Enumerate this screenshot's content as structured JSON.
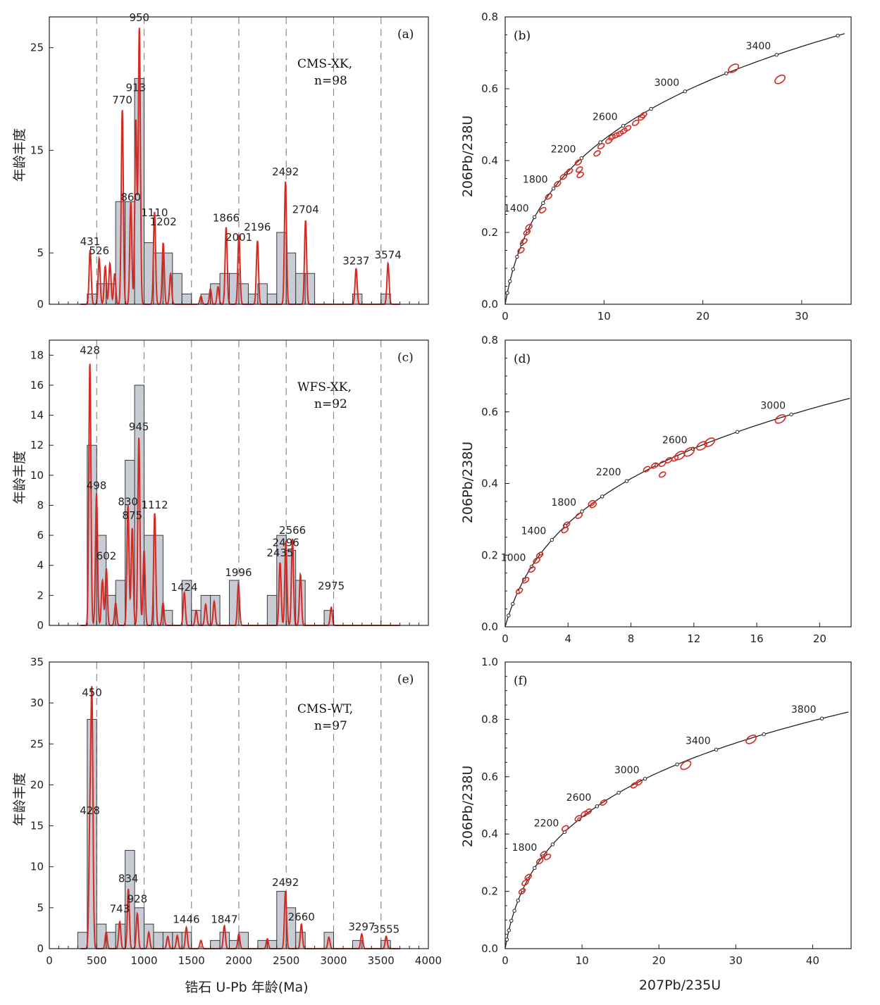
{
  "figure_text": {
    "histogram_x_label": "锆石 U-Pb 年龄(Ma)",
    "histogram_y_label": "年龄丰度",
    "concordia_x_label": "207Pb/235U",
    "concordia_y_label": "206Pb/238U"
  },
  "chart_data": [
    {
      "id": "a",
      "type": "bar",
      "panel_label": "(a)",
      "sample": "CMS-XK,",
      "n_label": "n=98",
      "xlim": [
        0,
        4000
      ],
      "ylim": [
        0,
        28
      ],
      "yticks": [
        0,
        5,
        15,
        25
      ],
      "xticks": [
        500,
        1000,
        1500,
        2000,
        2500,
        3000,
        3500
      ],
      "bin_width": 100,
      "bars": [
        [
          400,
          1
        ],
        [
          500,
          2
        ],
        [
          600,
          2
        ],
        [
          700,
          10
        ],
        [
          800,
          10
        ],
        [
          900,
          22
        ],
        [
          1000,
          6
        ],
        [
          1100,
          5
        ],
        [
          1200,
          5
        ],
        [
          1300,
          3
        ],
        [
          1400,
          1
        ],
        [
          1600,
          1
        ],
        [
          1700,
          2
        ],
        [
          1800,
          3
        ],
        [
          1900,
          3
        ],
        [
          2000,
          2
        ],
        [
          2100,
          1
        ],
        [
          2200,
          2
        ],
        [
          2300,
          1
        ],
        [
          2400,
          7
        ],
        [
          2500,
          5
        ],
        [
          2600,
          3
        ],
        [
          2700,
          3
        ],
        [
          3200,
          1
        ],
        [
          3500,
          1
        ]
      ],
      "curve_peaks": [
        [
          431,
          5.3
        ],
        [
          526,
          4.5
        ],
        [
          590,
          3.7
        ],
        [
          640,
          4
        ],
        [
          690,
          3
        ],
        [
          770,
          19
        ],
        [
          860,
          10
        ],
        [
          913,
          18
        ],
        [
          950,
          27
        ],
        [
          1110,
          9
        ],
        [
          1202,
          6
        ],
        [
          1280,
          3
        ],
        [
          1600,
          0.8
        ],
        [
          1700,
          1.5
        ],
        [
          1780,
          1.7
        ],
        [
          1866,
          7.5
        ],
        [
          2001,
          6.8
        ],
        [
          2196,
          6.2
        ],
        [
          2492,
          12
        ],
        [
          2704,
          8.2
        ],
        [
          3237,
          3.5
        ],
        [
          3574,
          4
        ]
      ],
      "peak_labels": [
        {
          "t": "431",
          "x": 431,
          "y": 5.5
        },
        {
          "t": "526",
          "x": 526,
          "y": 4.6
        },
        {
          "t": "770",
          "x": 770,
          "y": 19.3
        },
        {
          "t": "860",
          "x": 860,
          "y": 9.8
        },
        {
          "t": "913",
          "x": 913,
          "y": 20.5
        },
        {
          "t": "950",
          "x": 950,
          "y": 27.3
        },
        {
          "t": "1110",
          "x": 1110,
          "y": 8.3
        },
        {
          "t": "1202",
          "x": 1202,
          "y": 7.4
        },
        {
          "t": "1866",
          "x": 1866,
          "y": 7.8
        },
        {
          "t": "2001",
          "x": 2001,
          "y": 5.9
        },
        {
          "t": "2196",
          "x": 2196,
          "y": 6.9
        },
        {
          "t": "2492",
          "x": 2492,
          "y": 12.3
        },
        {
          "t": "2704",
          "x": 2704,
          "y": 8.6
        },
        {
          "t": "3237",
          "x": 3237,
          "y": 3.6
        },
        {
          "t": "3574",
          "x": 3574,
          "y": 4.2
        }
      ]
    },
    {
      "id": "b",
      "type": "scatter",
      "panel_label": "(b)",
      "xlim": [
        0,
        35
      ],
      "ylim": [
        0,
        0.8
      ],
      "xticks": [
        0,
        10,
        20,
        30
      ],
      "yticks": [
        0.0,
        0.2,
        0.4,
        0.6,
        0.8
      ],
      "concordia_labels": [
        1400,
        1800,
        2200,
        2600,
        3000,
        3400
      ],
      "concordia_max_age": 3950,
      "concordia_marker_step": 200,
      "ellipses": [
        [
          1.6,
          0.15
        ],
        [
          1.9,
          0.175
        ],
        [
          2.2,
          0.2
        ],
        [
          2.4,
          0.215
        ],
        [
          3.8,
          0.262
        ],
        [
          4.4,
          0.3
        ],
        [
          5.3,
          0.335
        ],
        [
          5.9,
          0.355
        ],
        [
          6.5,
          0.37
        ],
        [
          7.4,
          0.395
        ],
        [
          7.6,
          0.36
        ],
        [
          7.5,
          0.375
        ],
        [
          9.3,
          0.42
        ],
        [
          9.7,
          0.44
        ],
        [
          10.5,
          0.455
        ],
        [
          10.8,
          0.465
        ],
        [
          11.2,
          0.47
        ],
        [
          11.6,
          0.475
        ],
        [
          12.0,
          0.482
        ],
        [
          12.4,
          0.49
        ],
        [
          13.2,
          0.505
        ],
        [
          13.8,
          0.52
        ],
        [
          14.0,
          0.527
        ],
        [
          23.1,
          0.657
        ],
        [
          27.8,
          0.626
        ]
      ]
    },
    {
      "id": "c",
      "type": "bar",
      "panel_label": "(c)",
      "sample": "WFS-XK,",
      "n_label": "n=92",
      "xlim": [
        0,
        4000
      ],
      "ylim": [
        0,
        19
      ],
      "yticks": [
        0,
        2,
        4,
        6,
        8,
        10,
        12,
        14,
        16,
        18
      ],
      "xticks": [
        500,
        1000,
        1500,
        2000,
        2500,
        3000,
        3500
      ],
      "bin_width": 100,
      "bars": [
        [
          400,
          12
        ],
        [
          500,
          6
        ],
        [
          600,
          2
        ],
        [
          700,
          3
        ],
        [
          800,
          11
        ],
        [
          900,
          16
        ],
        [
          1000,
          6
        ],
        [
          1100,
          6
        ],
        [
          1200,
          1
        ],
        [
          1400,
          3
        ],
        [
          1500,
          1
        ],
        [
          1600,
          2
        ],
        [
          1700,
          2
        ],
        [
          1900,
          3
        ],
        [
          2300,
          2
        ],
        [
          2400,
          6
        ],
        [
          2500,
          5
        ],
        [
          2600,
          3
        ],
        [
          2900,
          1
        ]
      ],
      "curve_peaks": [
        [
          428,
          17.5
        ],
        [
          498,
          8.8
        ],
        [
          560,
          3
        ],
        [
          602,
          3.8
        ],
        [
          700,
          1.5
        ],
        [
          830,
          8
        ],
        [
          875,
          6.5
        ],
        [
          945,
          12.5
        ],
        [
          1000,
          5
        ],
        [
          1112,
          7.5
        ],
        [
          1200,
          1.5
        ],
        [
          1424,
          2.2
        ],
        [
          1550,
          1
        ],
        [
          1650,
          1.4
        ],
        [
          1740,
          1.6
        ],
        [
          1996,
          2.8
        ],
        [
          2435,
          4.2
        ],
        [
          2496,
          5.6
        ],
        [
          2566,
          5.8
        ],
        [
          2650,
          3.4
        ],
        [
          2975,
          1.2
        ]
      ],
      "peak_labels": [
        {
          "t": "428",
          "x": 428,
          "y": 17.9
        },
        {
          "t": "498",
          "x": 498,
          "y": 8.9
        },
        {
          "t": "602",
          "x": 602,
          "y": 4.2
        },
        {
          "t": "830",
          "x": 830,
          "y": 7.8
        },
        {
          "t": "875",
          "x": 875,
          "y": 6.9
        },
        {
          "t": "945",
          "x": 945,
          "y": 12.8
        },
        {
          "t": "1112",
          "x": 1112,
          "y": 7.6
        },
        {
          "t": "1424",
          "x": 1424,
          "y": 2.1
        },
        {
          "t": "1996",
          "x": 1996,
          "y": 3.1
        },
        {
          "t": "2435",
          "x": 2435,
          "y": 4.4
        },
        {
          "t": "2496",
          "x": 2496,
          "y": 5.1
        },
        {
          "t": "2566",
          "x": 2566,
          "y": 5.9
        },
        {
          "t": "2975",
          "x": 2975,
          "y": 2.2
        }
      ]
    },
    {
      "id": "d",
      "type": "scatter",
      "panel_label": "(d)",
      "xlim": [
        0,
        22
      ],
      "ylim": [
        0,
        0.8
      ],
      "xticks": [
        0,
        4,
        8,
        12,
        16,
        20
      ],
      "yticks": [
        0.0,
        0.2,
        0.4,
        0.6,
        0.8
      ],
      "concordia_labels": [
        1000,
        1400,
        1800,
        2200,
        2600,
        3000
      ],
      "concordia_max_age": 3400,
      "concordia_marker_step": 200,
      "ellipses": [
        [
          0.9,
          0.1
        ],
        [
          1.3,
          0.13
        ],
        [
          1.7,
          0.16
        ],
        [
          2.0,
          0.185
        ],
        [
          2.2,
          0.2
        ],
        [
          3.8,
          0.27
        ],
        [
          3.9,
          0.285
        ],
        [
          4.7,
          0.31
        ],
        [
          5.5,
          0.345
        ],
        [
          5.6,
          0.34
        ],
        [
          9.0,
          0.44
        ],
        [
          9.5,
          0.45
        ],
        [
          10.0,
          0.455
        ],
        [
          10.4,
          0.465
        ],
        [
          10.8,
          0.47
        ],
        [
          11.1,
          0.478
        ],
        [
          11.7,
          0.488
        ],
        [
          10.0,
          0.425
        ],
        [
          12.5,
          0.505
        ],
        [
          13.0,
          0.515
        ],
        [
          17.5,
          0.58
        ]
      ]
    },
    {
      "id": "e",
      "type": "bar",
      "panel_label": "(e)",
      "sample": "CMS-WT,",
      "n_label": "n=97",
      "xlim": [
        0,
        4000
      ],
      "ylim": [
        0,
        35
      ],
      "yticks": [
        0,
        5,
        10,
        15,
        20,
        25,
        30,
        35
      ],
      "xticks": [
        0,
        500,
        1000,
        1500,
        2000,
        2500,
        3000,
        3500,
        4000
      ],
      "bin_width": 100,
      "bars": [
        [
          300,
          2
        ],
        [
          400,
          28
        ],
        [
          500,
          3
        ],
        [
          600,
          2
        ],
        [
          700,
          3
        ],
        [
          800,
          12
        ],
        [
          900,
          5
        ],
        [
          1000,
          3
        ],
        [
          1100,
          2
        ],
        [
          1200,
          2
        ],
        [
          1300,
          2
        ],
        [
          1400,
          2
        ],
        [
          1700,
          1
        ],
        [
          1800,
          2
        ],
        [
          1900,
          1
        ],
        [
          2000,
          2
        ],
        [
          2200,
          1
        ],
        [
          2300,
          1
        ],
        [
          2400,
          7
        ],
        [
          2500,
          5
        ],
        [
          2600,
          2
        ],
        [
          2900,
          2
        ],
        [
          3200,
          1
        ],
        [
          3500,
          1
        ]
      ],
      "curve_peaks": [
        [
          428,
          14
        ],
        [
          450,
          30
        ],
        [
          600,
          2
        ],
        [
          743,
          3.3
        ],
        [
          834,
          7.3
        ],
        [
          928,
          4.3
        ],
        [
          1050,
          2
        ],
        [
          1250,
          1.5
        ],
        [
          1350,
          1.6
        ],
        [
          1446,
          2.6
        ],
        [
          1600,
          1
        ],
        [
          1847,
          2.8
        ],
        [
          2000,
          1.8
        ],
        [
          2300,
          1.2
        ],
        [
          2492,
          7
        ],
        [
          2660,
          3
        ],
        [
          2950,
          1.4
        ],
        [
          3297,
          1.8
        ],
        [
          3555,
          1.5
        ]
      ],
      "peak_labels": [
        {
          "t": "428",
          "x": 428,
          "y": 16.1
        },
        {
          "t": "450",
          "x": 450,
          "y": 30.5
        },
        {
          "t": "743",
          "x": 743,
          "y": 4.1
        },
        {
          "t": "834",
          "x": 834,
          "y": 7.8
        },
        {
          "t": "928",
          "x": 928,
          "y": 5.3
        },
        {
          "t": "1446",
          "x": 1446,
          "y": 2.8
        },
        {
          "t": "1847",
          "x": 1847,
          "y": 2.8
        },
        {
          "t": "2492",
          "x": 2492,
          "y": 7.3
        },
        {
          "t": "2660",
          "x": 2660,
          "y": 3.1
        },
        {
          "t": "3297",
          "x": 3297,
          "y": 1.9
        },
        {
          "t": "3555",
          "x": 3555,
          "y": 1.6
        }
      ]
    },
    {
      "id": "f",
      "type": "scatter",
      "panel_label": "(f)",
      "xlim": [
        0,
        45
      ],
      "ylim": [
        0,
        1.0
      ],
      "xticks": [
        0,
        10,
        20,
        30,
        40
      ],
      "yticks": [
        0.0,
        0.2,
        0.4,
        0.6,
        0.8,
        1.0
      ],
      "concordia_labels": [
        1800,
        2200,
        2600,
        3000,
        3400,
        3800
      ],
      "concordia_max_age": 4300,
      "concordia_marker_step": 200,
      "ellipses": [
        [
          2.2,
          0.2
        ],
        [
          2.6,
          0.23
        ],
        [
          3.0,
          0.25
        ],
        [
          4.5,
          0.305
        ],
        [
          5.0,
          0.33
        ],
        [
          5.5,
          0.32
        ],
        [
          7.8,
          0.42
        ],
        [
          9.5,
          0.455
        ],
        [
          10.3,
          0.47
        ],
        [
          10.8,
          0.478
        ],
        [
          12.8,
          0.51
        ],
        [
          16.8,
          0.57
        ],
        [
          17.4,
          0.58
        ],
        [
          23.5,
          0.64
        ],
        [
          32.0,
          0.73
        ]
      ]
    }
  ]
}
